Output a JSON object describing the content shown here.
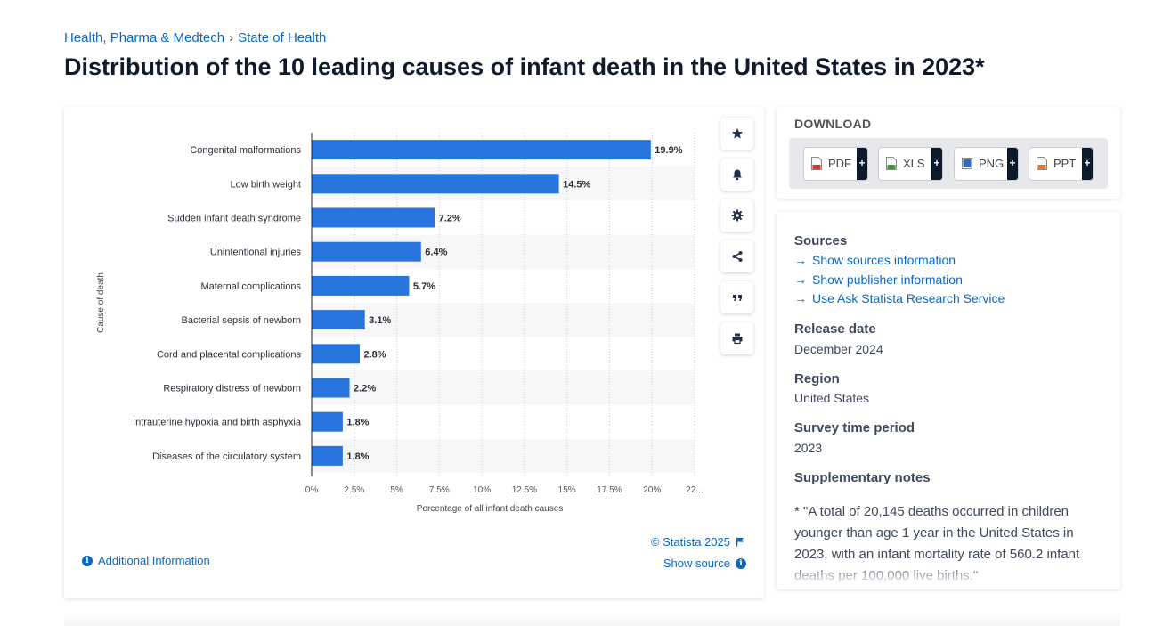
{
  "breadcrumb": {
    "category": "Health, Pharma & Medtech",
    "separator": "›",
    "subcategory": "State of Health"
  },
  "page_title": "Distribution of the 10 leading causes of infant death in the United States in 2023*",
  "colors": {
    "bar": "#2876dd",
    "link": "#0b68c4",
    "title": "#0f1b2d",
    "text": "#3d4a5c"
  },
  "chart_data": {
    "type": "bar",
    "orientation": "horizontal",
    "title": "",
    "xlabel": "Percentage of all infant death causes",
    "ylabel": "Cause of death",
    "categories": [
      "Congenital malformations",
      "Low birth weight",
      "Sudden infant death syndrome",
      "Unintentional injuries",
      "Maternal complications",
      "Bacterial sepsis of newborn",
      "Cord and placental complications",
      "Respiratory distress of newborn",
      "Intrauterine hypoxia and birth asphyxia",
      "Diseases of the circulatory system"
    ],
    "values": [
      19.9,
      14.5,
      7.2,
      6.4,
      5.7,
      3.1,
      2.8,
      2.2,
      1.8,
      1.8
    ],
    "data_labels": [
      "19.9%",
      "14.5%",
      "7.2%",
      "6.4%",
      "5.7%",
      "3.1%",
      "2.8%",
      "2.2%",
      "1.8%",
      "1.8%"
    ],
    "xticks": [
      0,
      2.5,
      5,
      7.5,
      10,
      12.5,
      15,
      17.5,
      20,
      22.5
    ],
    "xtick_labels": [
      "0%",
      "2.5%",
      "5%",
      "7.5%",
      "10%",
      "12.5%",
      "15%",
      "17.5%",
      "20%",
      "22..."
    ],
    "xlim": [
      0,
      22.5
    ],
    "grid": true
  },
  "chart_tools": [
    {
      "name": "favorite",
      "icon": "star-icon"
    },
    {
      "name": "notification",
      "icon": "bell-icon"
    },
    {
      "name": "settings",
      "icon": "gear-icon"
    },
    {
      "name": "share",
      "icon": "share-icon"
    },
    {
      "name": "cite",
      "icon": "quote-icon"
    },
    {
      "name": "print",
      "icon": "print-icon"
    }
  ],
  "chart_footer": {
    "additional_info": "Additional Information",
    "copyright": "© Statista 2025",
    "show_source": "Show source"
  },
  "download": {
    "title": "DOWNLOAD",
    "formats": [
      {
        "label": "PDF",
        "plus": "+",
        "icon": "pdf-file-icon",
        "icon_color": "#d9352b"
      },
      {
        "label": "XLS",
        "plus": "+",
        "icon": "xls-file-icon",
        "icon_color": "#3f9a3a"
      },
      {
        "label": "PNG",
        "plus": "+",
        "icon": "png-file-icon",
        "icon_color": "#2e6fb8"
      },
      {
        "label": "PPT",
        "plus": "+",
        "icon": "ppt-file-icon",
        "icon_color": "#e2772b"
      }
    ]
  },
  "info": {
    "sources_heading": "Sources",
    "source_links": [
      "Show sources information",
      "Show publisher information",
      "Use Ask Statista Research Service"
    ],
    "release_heading": "Release date",
    "release_value": "December 2024",
    "region_heading": "Region",
    "region_value": "United States",
    "survey_heading": "Survey time period",
    "survey_value": "2023",
    "notes_heading": "Supplementary notes",
    "notes_text": "* \"A total of 20,145 deaths occurred in children younger than age 1 year in the United States in 2023, with an infant mortality rate of 560.2 infant deaths per 100,000 live births.\""
  }
}
